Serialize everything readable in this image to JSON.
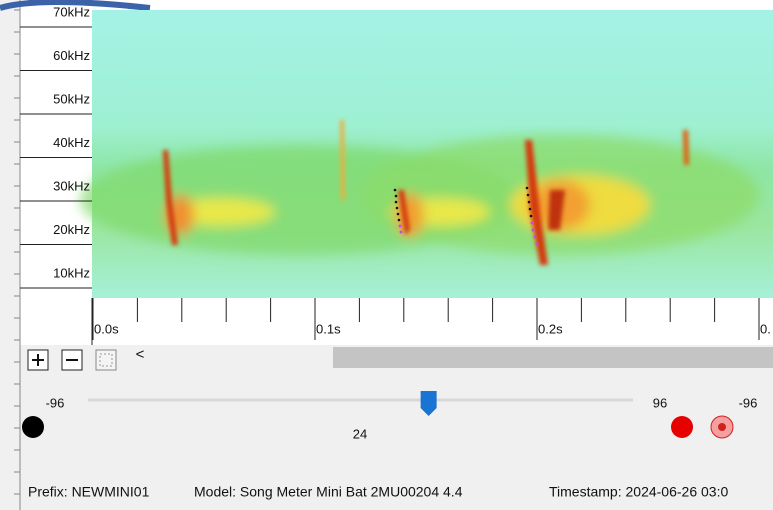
{
  "frequency_axis": {
    "labels": [
      "70kHz",
      "60kHz",
      "50kHz",
      "40kHz",
      "30kHz",
      "20kHz",
      "10kHz"
    ]
  },
  "time_axis": {
    "labels": [
      "0.0s",
      "0.1s",
      "0.2s",
      "0."
    ]
  },
  "toolbar": {
    "scroll_left": "<"
  },
  "slider": {
    "min": -96,
    "max": 96,
    "value": 24,
    "right_gain_label": "-96"
  },
  "status": {
    "prefix": "Prefix: NEWMINI01",
    "model": "Model: Song Meter Mini Bat 2MU00204 4.4",
    "timestamp": "Timestamp: 2024-06-26 03:0"
  }
}
